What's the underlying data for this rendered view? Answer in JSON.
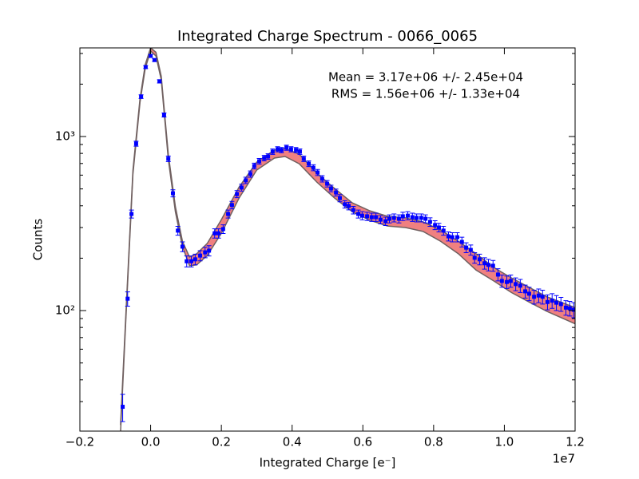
{
  "chart_data": {
    "type": "scatter",
    "title": "Integrated Charge Spectrum - 0066_0065",
    "x_label": "Integrated Charge [e⁻]",
    "y_label": "Counts",
    "x_offset_label": "1e7",
    "annotations": [
      "Mean = 3.17e+06 +/- 2.45e+04",
      "RMS = 1.56e+06 +/- 1.33e+04"
    ],
    "log_y": true,
    "xlim": [
      -0.2,
      1.2
    ],
    "ylim": [
      20.3,
      3230
    ],
    "xticks": [
      {
        "value": -0.2,
        "label": "−0.2"
      },
      {
        "value": 0,
        "label": "0.0"
      },
      0.2,
      0.4,
      0.6,
      0.8,
      {
        "value": 1,
        "label": "1.0"
      },
      1.2
    ],
    "yticks": [
      {
        "value": 100,
        "label": "10²"
      },
      {
        "value": 1000,
        "label": "10³"
      }
    ],
    "yminor_ticks": [
      30,
      40,
      50,
      60,
      70,
      80,
      90,
      200,
      300,
      400,
      500,
      600,
      700,
      800,
      900,
      2000,
      3000
    ],
    "band": {
      "color": "#f08080",
      "edge_color": "#706060",
      "x": [
        -0.085,
        -0.07,
        -0.05,
        -0.03,
        -0.015,
        0,
        0.015,
        0.03,
        0.05,
        0.07,
        0.09,
        0.11,
        0.13,
        0.16,
        0.2,
        0.25,
        0.3,
        0.35,
        0.38,
        0.42,
        0.47,
        0.52,
        0.57,
        0.62,
        0.67,
        0.72,
        0.77,
        0.82,
        0.87,
        0.92,
        0.97,
        1.02,
        1.07,
        1.12,
        1.2
      ],
      "lower": [
        20,
        89,
        608,
        1575,
        2478,
        3100,
        2905,
        2120,
        740,
        370,
        233,
        181,
        183,
        207,
        278,
        443,
        642,
        752,
        768,
        698,
        547,
        443,
        370,
        330,
        306,
        300,
        285,
        250,
        212,
        171,
        148,
        127,
        112,
        99,
        84
      ],
      "upper": [
        22,
        95,
        640,
        1650,
        2600,
        3230,
        3050,
        2220,
        790,
        395,
        250,
        203,
        212,
        243,
        333,
        512,
        713,
        836,
        854,
        792,
        615,
        503,
        416,
        374,
        348,
        341,
        323,
        290,
        250,
        212,
        177,
        154,
        136,
        120,
        104
      ]
    },
    "series": [
      {
        "color": "#0000ff",
        "x": [
          -0.079,
          -0.065,
          -0.054,
          -0.041,
          -0.027,
          -0.014,
          0.0,
          0.011,
          0.025,
          0.038,
          0.05,
          0.063,
          0.077,
          0.09,
          0.102,
          0.115,
          0.126,
          0.14,
          0.154,
          0.165,
          0.181,
          0.192,
          0.205,
          0.219,
          0.23,
          0.244,
          0.257,
          0.269,
          0.282,
          0.293,
          0.307,
          0.321,
          0.332,
          0.345,
          0.359,
          0.37,
          0.384,
          0.397,
          0.411,
          0.422,
          0.433,
          0.447,
          0.46,
          0.472,
          0.485,
          0.499,
          0.51,
          0.524,
          0.535,
          0.549,
          0.56,
          0.573,
          0.587,
          0.598,
          0.612,
          0.625,
          0.637,
          0.65,
          0.664,
          0.675,
          0.688,
          0.702,
          0.713,
          0.727,
          0.74,
          0.752,
          0.765,
          0.777,
          0.79,
          0.804,
          0.815,
          0.828,
          0.842,
          0.853,
          0.867,
          0.88,
          0.892,
          0.905,
          0.916,
          0.93,
          0.944,
          0.955,
          0.968,
          0.982,
          0.993,
          1.007,
          1.018,
          1.032,
          1.045,
          1.059,
          1.07,
          1.084,
          1.097,
          1.108,
          1.122,
          1.135,
          1.147,
          1.16,
          1.174,
          1.185,
          1.196
        ],
        "values": [
          28,
          117,
          359,
          910,
          1695,
          2507,
          2905,
          2750,
          2075,
          1330,
          745,
          472,
          288,
          233,
          192,
          192,
          197,
          207,
          216,
          221,
          278,
          278,
          294,
          359,
          404,
          467,
          509,
          560,
          609,
          677,
          721,
          752,
          768,
          819,
          845,
          836,
          863,
          845,
          836,
          819,
          745,
          698,
          662,
          622,
          572,
          536,
          503,
          477,
          443,
          408,
          399,
          378,
          359,
          351,
          348,
          344,
          344,
          333,
          326,
          337,
          341,
          337,
          348,
          351,
          344,
          341,
          341,
          337,
          323,
          310,
          300,
          288,
          267,
          264,
          264,
          248,
          230,
          223,
          201,
          197,
          187,
          183,
          181,
          161,
          148,
          146,
          148,
          142,
          139,
          129,
          125,
          120,
          122,
          120,
          112,
          114,
          111,
          109,
          104,
          103,
          101
        ],
        "errors": [
          5,
          11,
          19,
          30,
          41,
          50,
          54,
          52,
          46,
          36,
          27,
          22,
          17,
          15,
          14,
          14,
          14,
          14,
          15,
          15,
          17,
          17,
          17,
          19,
          20,
          22,
          23,
          24,
          25,
          26,
          27,
          27,
          28,
          29,
          29,
          29,
          29,
          29,
          29,
          29,
          27,
          26,
          26,
          25,
          24,
          23,
          22,
          22,
          21,
          20,
          20,
          19,
          19,
          19,
          19,
          19,
          19,
          18,
          18,
          18,
          18,
          18,
          19,
          19,
          19,
          18,
          18,
          18,
          18,
          18,
          17,
          17,
          16,
          16,
          16,
          16,
          15,
          15,
          14,
          14,
          14,
          14,
          13,
          13,
          12,
          12,
          12,
          12,
          12,
          11,
          11,
          11,
          11,
          11,
          11,
          11,
          11,
          10,
          10,
          10,
          10
        ]
      }
    ]
  }
}
